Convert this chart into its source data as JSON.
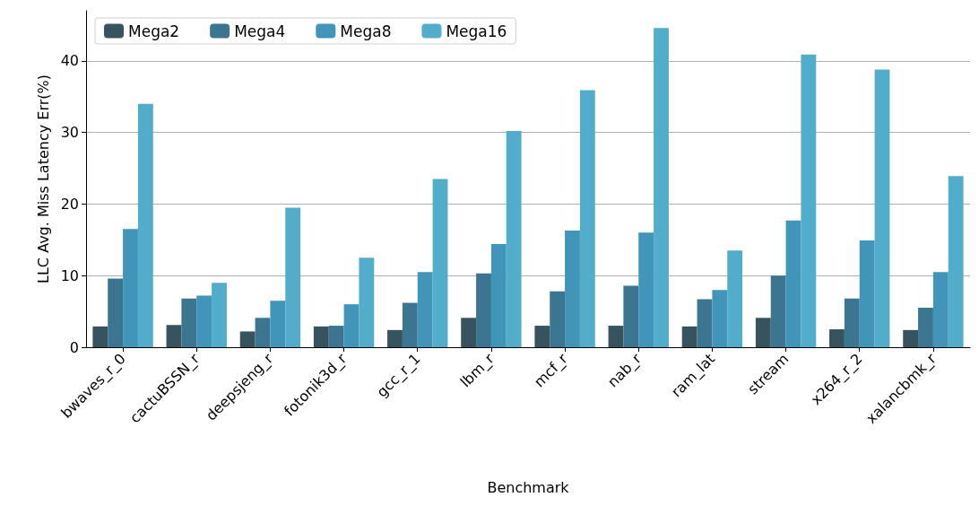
{
  "chart_data": {
    "type": "bar",
    "xlabel": "Benchmark",
    "ylabel": "LLC Avg. Miss Latency Err(%)",
    "categories": [
      "bwaves_r_0",
      "cactuBSSN_r",
      "deepsjeng_r",
      "fotonik3d_r",
      "gcc_r_1",
      "lbm_r",
      "mcf_r",
      "nab_r",
      "ram_lat",
      "stream",
      "x264_r_2",
      "xalancbmk_r"
    ],
    "series": [
      {
        "name": "Mega2",
        "color": "#36535e",
        "values": [
          2.9,
          3.1,
          2.2,
          2.9,
          2.4,
          4.1,
          3.0,
          3.0,
          2.9,
          4.1,
          2.5,
          2.4
        ]
      },
      {
        "name": "Mega4",
        "color": "#3b7590",
        "values": [
          9.6,
          6.8,
          4.1,
          3.0,
          6.2,
          10.3,
          7.8,
          8.6,
          6.7,
          10.0,
          6.8,
          5.5
        ]
      },
      {
        "name": "Mega8",
        "color": "#4095b8",
        "values": [
          16.5,
          7.2,
          6.5,
          6.0,
          10.5,
          14.4,
          16.3,
          16.0,
          8.0,
          17.7,
          14.9,
          10.5
        ]
      },
      {
        "name": "Mega16",
        "color": "#52adcb",
        "values": [
          34.0,
          9.0,
          19.5,
          12.5,
          23.5,
          30.2,
          35.9,
          44.6,
          13.5,
          40.9,
          38.8,
          23.9
        ]
      }
    ],
    "ylim": [
      0,
      47
    ],
    "yticks": [
      0,
      10,
      20,
      30,
      40
    ],
    "grid": "y",
    "legend": "top left"
  }
}
